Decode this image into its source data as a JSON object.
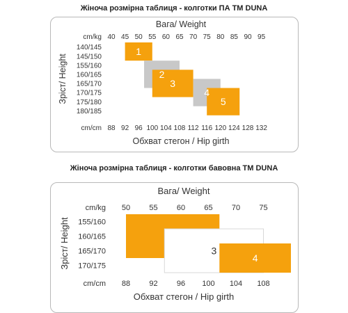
{
  "colors": {
    "orange": "#f5a10d",
    "gray": "#c8c8c8",
    "white_box_border": "#d8d8d8",
    "panel_border": "#b8b8b8"
  },
  "chart1": {
    "title": "Жіноча розмірна таблиця - колготки ПА ТМ DUNA",
    "weight_label": "Вага/ Weight",
    "weight_unit": "cm/kg",
    "weights": [
      "40",
      "45",
      "50",
      "55",
      "60",
      "65",
      "70",
      "75",
      "80",
      "85",
      "90",
      "95"
    ],
    "height_label": "Зріст/ Height",
    "heights": [
      "140/145",
      "145/150",
      "155/160",
      "160/165",
      "165/170",
      "170/175",
      "175/180",
      "180/185"
    ],
    "girth_unit": "cm/cm",
    "girths": [
      "88",
      "92",
      "96",
      "100",
      "104",
      "108",
      "112",
      "116",
      "120",
      "124",
      "128",
      "132"
    ],
    "girth_label": "Обхват стегон / Hip girth",
    "sizes": [
      {
        "label": "1",
        "color": "orange",
        "weight_from": 45,
        "weight_to": 55,
        "height_row_from": 0,
        "height_row_to": 2
      },
      {
        "label": "2",
        "color": "gray",
        "weight_from": 52,
        "weight_to": 65,
        "height_row_from": 2,
        "height_row_to": 5
      },
      {
        "label": "3",
        "color": "orange",
        "weight_from": 55,
        "weight_to": 70,
        "height_row_from": 3,
        "height_row_to": 6
      },
      {
        "label": "4",
        "color": "gray",
        "weight_from": 70,
        "weight_to": 80,
        "height_row_from": 4,
        "height_row_to": 7
      },
      {
        "label": "5",
        "color": "orange",
        "weight_from": 75,
        "weight_to": 87,
        "height_row_from": 5,
        "height_row_to": 8
      }
    ]
  },
  "chart2": {
    "title": "Жіноча розмірна таблиця - колготки бавовна ТМ DUNA",
    "weight_label": "Вага/ Weight",
    "weight_unit": "cm/kg",
    "weights": [
      "50",
      "55",
      "60",
      "65",
      "70",
      "75"
    ],
    "height_label": "Зріст/ Height",
    "heights": [
      "155/160",
      "160/165",
      "165/170",
      "170/175"
    ],
    "girth_unit": "cm/cm",
    "girths": [
      "88",
      "92",
      "96",
      "100",
      "104",
      "108"
    ],
    "girth_label": "Обхват стегон / Hip girth",
    "sizes": [
      {
        "label": "2",
        "color": "orange",
        "weight_from": 50,
        "weight_to": 67,
        "height_row_from": 0,
        "height_row_to": 3
      },
      {
        "label": "3",
        "color": "white",
        "weight_from": 57,
        "weight_to": 75,
        "height_row_from": 1,
        "height_row_to": 4
      },
      {
        "label": "4",
        "color": "orange",
        "weight_from": 67,
        "weight_to": 80,
        "height_row_from": 2,
        "height_row_to": 4
      }
    ]
  }
}
